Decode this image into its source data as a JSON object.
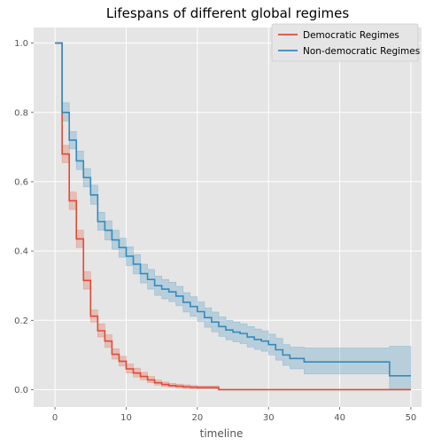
{
  "chart_data": {
    "type": "line",
    "title": "Lifespans of different global regimes",
    "xlabel": "timeline",
    "ylabel": "",
    "xlim": [
      -3,
      51.5
    ],
    "ylim": [
      -0.05,
      1.045
    ],
    "xticks": [
      0,
      10,
      20,
      30,
      40,
      50
    ],
    "yticks": [
      0.0,
      0.2,
      0.4,
      0.6,
      0.8,
      1.0
    ],
    "grid": true,
    "legend_position": "top-right",
    "step": "post",
    "series": [
      {
        "name": "Democratic Regimes",
        "color": "#e24a33",
        "x": [
          0,
          1,
          2,
          3,
          4,
          5,
          6,
          7,
          8,
          9,
          10,
          11,
          12,
          13,
          14,
          15,
          16,
          17,
          18,
          19,
          20,
          23,
          50
        ],
        "y": [
          1.0,
          0.68,
          0.545,
          0.435,
          0.315,
          0.212,
          0.17,
          0.14,
          0.102,
          0.082,
          0.06,
          0.048,
          0.038,
          0.028,
          0.02,
          0.015,
          0.012,
          0.01,
          0.008,
          0.007,
          0.006,
          0.0,
          0.0
        ],
        "ci_lower": [
          1.0,
          0.655,
          0.52,
          0.41,
          0.29,
          0.195,
          0.152,
          0.122,
          0.088,
          0.068,
          0.048,
          0.036,
          0.028,
          0.02,
          0.013,
          0.009,
          0.007,
          0.005,
          0.003,
          0.002,
          0.002,
          0.0,
          0.0
        ],
        "ci_upper": [
          1.0,
          0.705,
          0.57,
          0.46,
          0.34,
          0.23,
          0.19,
          0.158,
          0.118,
          0.096,
          0.074,
          0.062,
          0.05,
          0.038,
          0.028,
          0.022,
          0.018,
          0.016,
          0.014,
          0.012,
          0.011,
          0.0,
          0.0
        ]
      },
      {
        "name": "Non-democratic Regimes",
        "color": "#348abd",
        "x": [
          0,
          1,
          2,
          3,
          4,
          5,
          6,
          7,
          8,
          9,
          10,
          11,
          12,
          13,
          14,
          15,
          16,
          17,
          18,
          19,
          20,
          21,
          22,
          23,
          24,
          25,
          26,
          27,
          28,
          29,
          30,
          31,
          32,
          33,
          35,
          47,
          50
        ],
        "y": [
          1.0,
          0.8,
          0.72,
          0.66,
          0.612,
          0.562,
          0.485,
          0.46,
          0.432,
          0.41,
          0.385,
          0.362,
          0.335,
          0.318,
          0.3,
          0.29,
          0.282,
          0.27,
          0.252,
          0.24,
          0.225,
          0.208,
          0.195,
          0.182,
          0.172,
          0.166,
          0.162,
          0.152,
          0.145,
          0.14,
          0.13,
          0.115,
          0.1,
          0.09,
          0.08,
          0.04,
          0.04
        ],
        "ci_lower": [
          1.0,
          0.775,
          0.695,
          0.635,
          0.585,
          0.535,
          0.46,
          0.432,
          0.405,
          0.382,
          0.358,
          0.334,
          0.308,
          0.29,
          0.272,
          0.262,
          0.254,
          0.242,
          0.224,
          0.212,
          0.197,
          0.18,
          0.167,
          0.154,
          0.144,
          0.138,
          0.133,
          0.123,
          0.116,
          0.111,
          0.1,
          0.085,
          0.07,
          0.06,
          0.045,
          0.0,
          0.0
        ],
        "ci_upper": [
          1.0,
          0.828,
          0.745,
          0.688,
          0.638,
          0.59,
          0.512,
          0.487,
          0.46,
          0.437,
          0.412,
          0.39,
          0.362,
          0.347,
          0.328,
          0.318,
          0.31,
          0.298,
          0.28,
          0.268,
          0.253,
          0.236,
          0.224,
          0.21,
          0.2,
          0.195,
          0.19,
          0.182,
          0.175,
          0.17,
          0.16,
          0.148,
          0.13,
          0.123,
          0.12,
          0.125,
          0.125
        ]
      }
    ]
  }
}
